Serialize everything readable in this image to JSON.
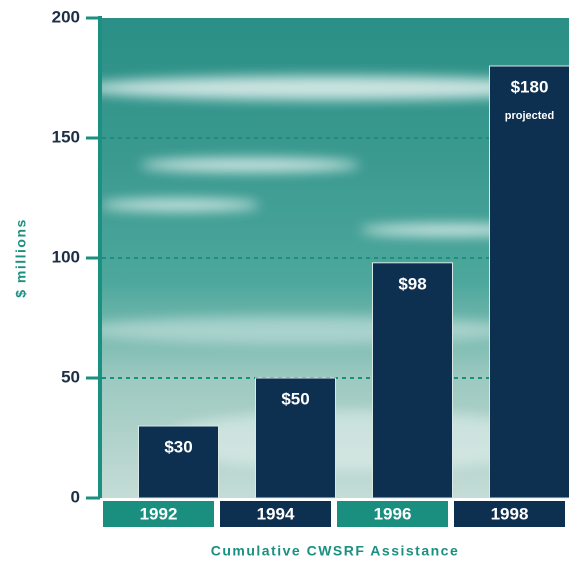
{
  "chart_data": {
    "type": "bar",
    "y_label": "$ millions",
    "x_label": "Cumulative CWSRF Assistance",
    "categories": [
      "1992",
      "1994",
      "1996",
      "1998"
    ],
    "values": [
      30,
      50,
      98,
      180
    ],
    "value_labels": [
      "$30",
      "$50",
      "$98",
      "$180"
    ],
    "annotation": "projected",
    "color": "#0d2f50",
    "ylim": [
      0,
      200
    ],
    "yticks": [
      0,
      50,
      100,
      150,
      200
    ],
    "grid": true
  }
}
